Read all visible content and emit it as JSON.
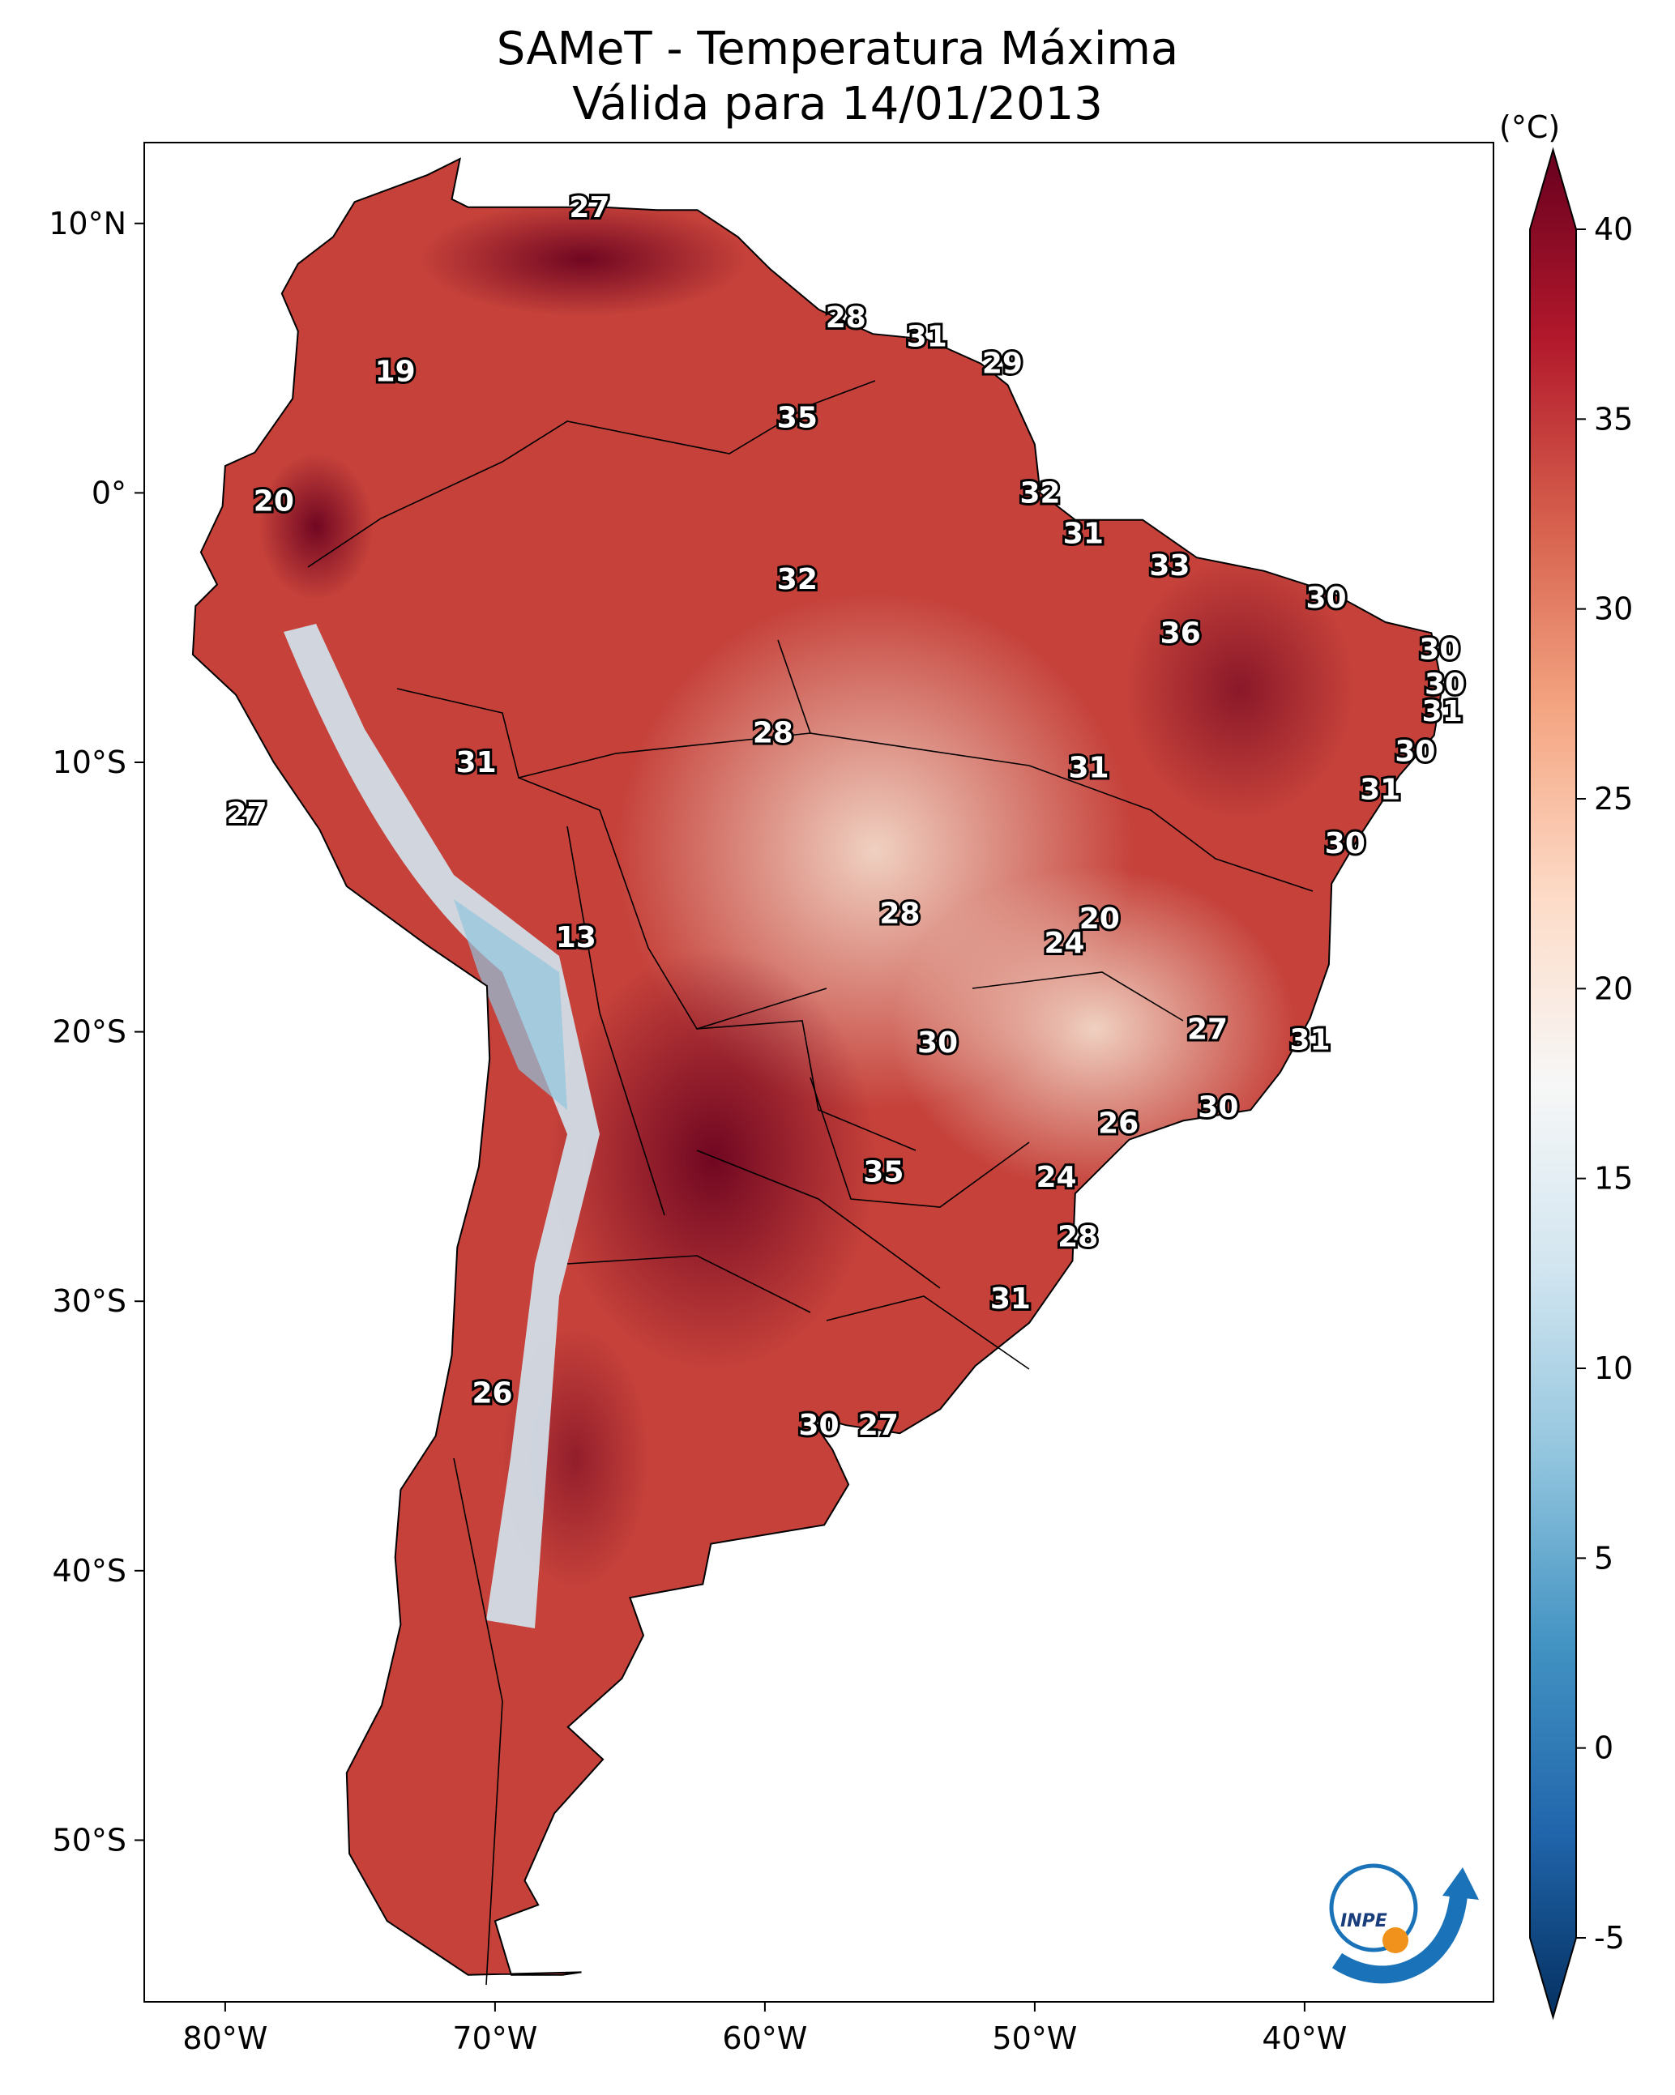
{
  "title": {
    "line1": "SAMeT - Temperatura Máxima",
    "line2": "Válida para 14/01/2013"
  },
  "map": {
    "lon_range": [
      -83,
      -33
    ],
    "lat_range": [
      -56,
      13
    ],
    "lon_ticks": [
      {
        "value": -80,
        "label": "80°W"
      },
      {
        "value": -70,
        "label": "70°W"
      },
      {
        "value": -60,
        "label": "60°W"
      },
      {
        "value": -50,
        "label": "50°W"
      },
      {
        "value": -40,
        "label": "40°W"
      }
    ],
    "lat_ticks": [
      {
        "value": 10,
        "label": "10°N"
      },
      {
        "value": 0,
        "label": "0°"
      },
      {
        "value": -10,
        "label": "10°S"
      },
      {
        "value": -20,
        "label": "20°S"
      },
      {
        "value": -30,
        "label": "30°S"
      },
      {
        "value": -40,
        "label": "40°S"
      },
      {
        "value": -50,
        "label": "50°S"
      }
    ],
    "station_values": [
      {
        "lon": -66.5,
        "lat": 10.6,
        "value": "27"
      },
      {
        "lon": -57.0,
        "lat": 6.5,
        "value": "28"
      },
      {
        "lon": -54.0,
        "lat": 5.8,
        "value": "31"
      },
      {
        "lon": -51.2,
        "lat": 4.8,
        "value": "29"
      },
      {
        "lon": -73.7,
        "lat": 4.5,
        "value": "19"
      },
      {
        "lon": -58.8,
        "lat": 2.8,
        "value": "35"
      },
      {
        "lon": -78.2,
        "lat": -0.3,
        "value": "20"
      },
      {
        "lon": -49.8,
        "lat": 0.0,
        "value": "32"
      },
      {
        "lon": -48.2,
        "lat": -1.5,
        "value": "31"
      },
      {
        "lon": -45.0,
        "lat": -2.7,
        "value": "33"
      },
      {
        "lon": -58.8,
        "lat": -3.2,
        "value": "32"
      },
      {
        "lon": -44.6,
        "lat": -5.2,
        "value": "36"
      },
      {
        "lon": -39.2,
        "lat": -3.9,
        "value": "30"
      },
      {
        "lon": -35.0,
        "lat": -5.8,
        "value": "30"
      },
      {
        "lon": -34.8,
        "lat": -7.1,
        "value": "30"
      },
      {
        "lon": -34.9,
        "lat": -8.1,
        "value": "31"
      },
      {
        "lon": -59.7,
        "lat": -8.9,
        "value": "28"
      },
      {
        "lon": -70.7,
        "lat": -10.0,
        "value": "31"
      },
      {
        "lon": -48.0,
        "lat": -10.2,
        "value": "31"
      },
      {
        "lon": -35.9,
        "lat": -9.6,
        "value": "30"
      },
      {
        "lon": -37.2,
        "lat": -11.0,
        "value": "31"
      },
      {
        "lon": -79.2,
        "lat": -11.9,
        "value": "27"
      },
      {
        "lon": -38.5,
        "lat": -13.0,
        "value": "30"
      },
      {
        "lon": -67.0,
        "lat": -16.5,
        "value": "13"
      },
      {
        "lon": -55.0,
        "lat": -15.6,
        "value": "28"
      },
      {
        "lon": -47.6,
        "lat": -15.8,
        "value": "20"
      },
      {
        "lon": -48.9,
        "lat": -16.7,
        "value": "24"
      },
      {
        "lon": -53.6,
        "lat": -20.4,
        "value": "30"
      },
      {
        "lon": -43.6,
        "lat": -19.9,
        "value": "27"
      },
      {
        "lon": -39.8,
        "lat": -20.3,
        "value": "31"
      },
      {
        "lon": -46.9,
        "lat": -23.4,
        "value": "26"
      },
      {
        "lon": -43.2,
        "lat": -22.8,
        "value": "30"
      },
      {
        "lon": -55.6,
        "lat": -25.2,
        "value": "35"
      },
      {
        "lon": -49.2,
        "lat": -25.4,
        "value": "24"
      },
      {
        "lon": -48.4,
        "lat": -27.6,
        "value": "28"
      },
      {
        "lon": -50.9,
        "lat": -29.9,
        "value": "31"
      },
      {
        "lon": -70.1,
        "lat": -33.4,
        "value": "26"
      },
      {
        "lon": -58.0,
        "lat": -34.6,
        "value": "30"
      },
      {
        "lon": -55.8,
        "lat": -34.6,
        "value": "27"
      }
    ]
  },
  "colorbar": {
    "unit": "(°C)",
    "range": [
      -5,
      40
    ],
    "ticks": [
      "40",
      "35",
      "30",
      "25",
      "20",
      "15",
      "10",
      "5",
      "0",
      "-5"
    ],
    "colors": [
      "#053061",
      "#2166ac",
      "#4393c3",
      "#92c5de",
      "#d1e5f0",
      "#f7f7f7",
      "#fddbc7",
      "#f4a582",
      "#d6604d",
      "#b2182b",
      "#67001f"
    ]
  },
  "logo": {
    "text": "INPE"
  }
}
